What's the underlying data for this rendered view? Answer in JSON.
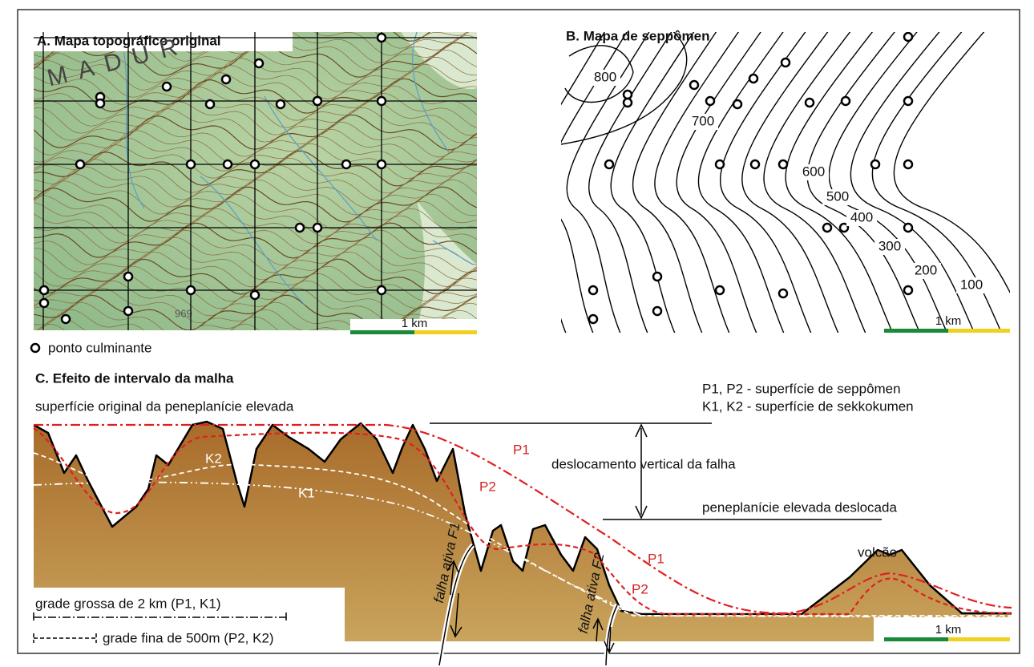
{
  "panel_a": {
    "title": "A. Mapa topográfico original",
    "place_name": "MADUR",
    "spot_height": "969",
    "scale_label": "1 km",
    "legend_label": "ponto culminante"
  },
  "panel_b": {
    "title": "B. Mapa de seppômen",
    "contour_labels": [
      800,
      700,
      600,
      500,
      400,
      300,
      200,
      100
    ],
    "scale_label": "1 km"
  },
  "panel_c": {
    "title": "C. Efeito de intervalo da malha",
    "original_surface": "superfície original da peneplanície elevada",
    "key": [
      "P1, P2 - superfície de seppômen",
      "K1, K2 - superfície de sekkokumen"
    ],
    "fault_displacement": "deslocamento vertical da falha",
    "displaced_surface": "peneplanície elevada deslocada",
    "curve_labels": [
      "P1",
      "P2",
      "K2",
      "K1",
      "P1",
      "P2"
    ],
    "volcano": "volcão",
    "faults": [
      "falha ativa F1",
      "falha ativa F2"
    ],
    "legend": [
      "grade grossa de 2 km (P1, K1)",
      "grade fina de 500m (P2, K2)"
    ],
    "scale_label": "1 km"
  }
}
